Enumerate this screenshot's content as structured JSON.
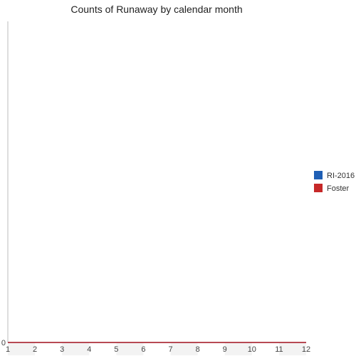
{
  "chart_data": {
    "type": "line",
    "title": "Counts of Runaway by calendar month",
    "xlabel": "",
    "ylabel": "",
    "categories": [
      "1",
      "2",
      "3",
      "4",
      "5",
      "6",
      "7",
      "8",
      "9",
      "10",
      "11",
      "12"
    ],
    "series": [
      {
        "name": "RI-2016",
        "color": "#1f5fb5",
        "values": [
          0,
          0,
          0,
          0,
          0,
          0,
          0,
          0,
          0,
          0,
          0,
          0
        ]
      },
      {
        "name": "Foster",
        "color": "#c62828",
        "values": [
          0,
          0,
          0,
          0,
          0,
          0,
          0,
          0,
          0,
          0,
          0,
          0
        ]
      }
    ],
    "y_ticks": [
      "0"
    ],
    "ylim": [
      0,
      1
    ],
    "grid": false,
    "legend_position": "right"
  }
}
